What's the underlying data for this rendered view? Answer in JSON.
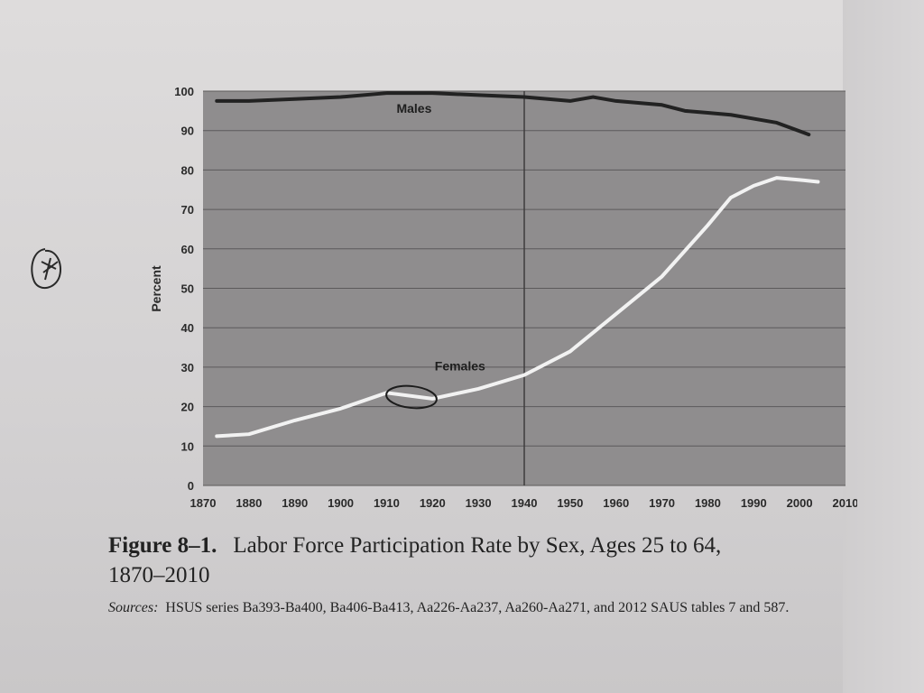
{
  "chart_data": {
    "type": "line",
    "ylabel": "Percent",
    "xlabel": "",
    "ylim": [
      0,
      100
    ],
    "xlim": [
      1870,
      2010
    ],
    "yticks": [
      0,
      10,
      20,
      30,
      40,
      50,
      60,
      70,
      80,
      90,
      100
    ],
    "xticks": [
      1870,
      1880,
      1890,
      1900,
      1910,
      1920,
      1930,
      1940,
      1950,
      1960,
      1970,
      1980,
      1990,
      2000,
      2010
    ],
    "grid": true,
    "vertical_marker": 1940,
    "series": [
      {
        "name": "Males",
        "color": "#222222",
        "x": [
          1873,
          1880,
          1890,
          1900,
          1910,
          1920,
          1930,
          1940,
          1950,
          1955,
          1960,
          1970,
          1975,
          1980,
          1985,
          1990,
          1995,
          2002
        ],
        "y": [
          97.5,
          97.5,
          98,
          98.5,
          99.5,
          99.5,
          99,
          98.5,
          97.5,
          98.5,
          97.5,
          96.5,
          95,
          94.5,
          94,
          93,
          92,
          89
        ]
      },
      {
        "name": "Females",
        "color": "#f2f2f2",
        "x": [
          1873,
          1880,
          1890,
          1900,
          1910,
          1920,
          1930,
          1940,
          1950,
          1960,
          1970,
          1980,
          1985,
          1990,
          1995,
          2000,
          2004
        ],
        "y": [
          12.5,
          13,
          16.5,
          19.5,
          23.5,
          22,
          24.5,
          28,
          34,
          43.5,
          53,
          66,
          73,
          76,
          78,
          77.5,
          77
        ]
      }
    ]
  },
  "caption": {
    "figure_label": "Figure 8–1.",
    "title_line1": "Labor Force Participation Rate by Sex, Ages 25 to 64,",
    "title_line2": "1870–2010",
    "sources_label": "Sources:",
    "sources_text": "HSUS series Ba393-Ba400, Ba406-Ba413, Aa226-Aa237, Aa260-Aa271, and 2012 SAUS tables 7 and 587."
  },
  "colors": {
    "plot_background": "#8f8d8e",
    "gridline": "#5c5a5b",
    "page": "#dcdada"
  }
}
